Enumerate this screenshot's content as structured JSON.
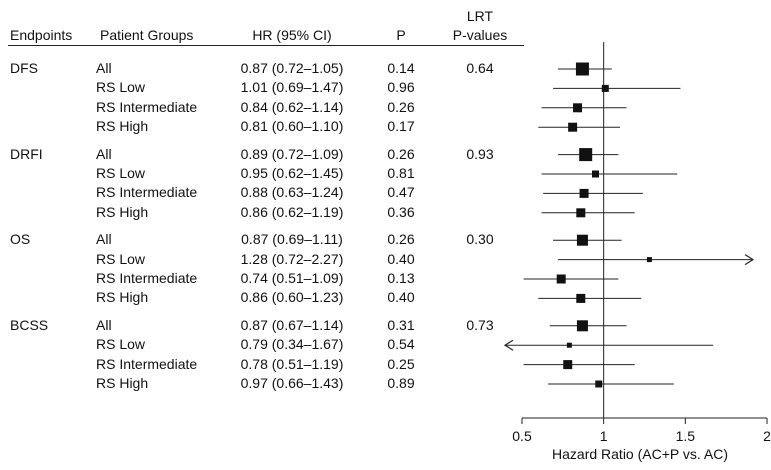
{
  "chart_data": {
    "type": "forest",
    "columns": {
      "endpoint": "Endpoints",
      "group": "Patient Groups",
      "hr": "HR (95% CI)",
      "p": "P",
      "lrt_line1": "LRT",
      "lrt_line2": "P-values"
    },
    "xlabel": "Hazard Ratio (AC+P vs. AC)",
    "xlim": [
      0.5,
      2
    ],
    "xticks": [
      "0.5",
      "1",
      "1.5",
      "2"
    ],
    "xtick_values": [
      0.5,
      1,
      1.5,
      2
    ],
    "reference_line": 1,
    "endpoints": [
      {
        "name": "DFS",
        "lrt": "0.64",
        "rows": [
          {
            "group": "All",
            "hr_text": "0.87 (0.72–1.05)",
            "p": "0.14",
            "hr": 0.87,
            "lo": 0.72,
            "hi": 1.05,
            "weight": 4
          },
          {
            "group": "RS Low",
            "hr_text": "1.01 (0.69–1.47)",
            "p": "0.96",
            "hr": 1.01,
            "lo": 0.69,
            "hi": 1.47,
            "weight": 1
          },
          {
            "group": "RS Intermediate",
            "hr_text": "0.84 (0.62–1.14)",
            "p": "0.26",
            "hr": 0.84,
            "lo": 0.62,
            "hi": 1.14,
            "weight": 2
          },
          {
            "group": "RS High",
            "hr_text": "0.81 (0.60–1.10)",
            "p": "0.17",
            "hr": 0.81,
            "lo": 0.6,
            "hi": 1.1,
            "weight": 2
          }
        ]
      },
      {
        "name": "DRFI",
        "lrt": "0.93",
        "rows": [
          {
            "group": "All",
            "hr_text": "0.89 (0.72–1.09)",
            "p": "0.26",
            "hr": 0.89,
            "lo": 0.72,
            "hi": 1.09,
            "weight": 4
          },
          {
            "group": "RS Low",
            "hr_text": "0.95 (0.62–1.45)",
            "p": "0.81",
            "hr": 0.95,
            "lo": 0.62,
            "hi": 1.45,
            "weight": 1
          },
          {
            "group": "RS Intermediate",
            "hr_text": "0.88 (0.63–1.24)",
            "p": "0.47",
            "hr": 0.88,
            "lo": 0.63,
            "hi": 1.24,
            "weight": 2
          },
          {
            "group": "RS High",
            "hr_text": "0.86 (0.62–1.19)",
            "p": "0.36",
            "hr": 0.86,
            "lo": 0.62,
            "hi": 1.19,
            "weight": 2
          }
        ]
      },
      {
        "name": "OS",
        "lrt": "0.30",
        "rows": [
          {
            "group": "All",
            "hr_text": "0.87 (0.69–1.11)",
            "p": "0.26",
            "hr": 0.87,
            "lo": 0.69,
            "hi": 1.11,
            "weight": 3
          },
          {
            "group": "RS Low",
            "hr_text": "1.28 (0.72–2.27)",
            "p": "0.40",
            "hr": 1.28,
            "lo": 0.72,
            "hi": 2.27,
            "weight": 0
          },
          {
            "group": "RS Intermediate",
            "hr_text": "0.74 (0.51–1.09)",
            "p": "0.13",
            "hr": 0.74,
            "lo": 0.51,
            "hi": 1.09,
            "weight": 2
          },
          {
            "group": "RS High",
            "hr_text": "0.86 (0.60–1.23)",
            "p": "0.40",
            "hr": 0.86,
            "lo": 0.6,
            "hi": 1.23,
            "weight": 2
          }
        ]
      },
      {
        "name": "BCSS",
        "lrt": "0.73",
        "rows": [
          {
            "group": "All",
            "hr_text": "0.87 (0.67–1.14)",
            "p": "0.31",
            "hr": 0.87,
            "lo": 0.67,
            "hi": 1.14,
            "weight": 3
          },
          {
            "group": "RS Low",
            "hr_text": "0.79 (0.34–1.67)",
            "p": "0.54",
            "hr": 0.79,
            "lo": 0.34,
            "hi": 1.67,
            "weight": 0
          },
          {
            "group": "RS Intermediate",
            "hr_text": "0.78 (0.51–1.19)",
            "p": "0.25",
            "hr": 0.78,
            "lo": 0.51,
            "hi": 1.19,
            "weight": 2
          },
          {
            "group": "RS High",
            "hr_text": "0.97 (0.66–1.43)",
            "p": "0.89",
            "hr": 0.97,
            "lo": 0.66,
            "hi": 1.43,
            "weight": 1
          }
        ]
      }
    ]
  }
}
